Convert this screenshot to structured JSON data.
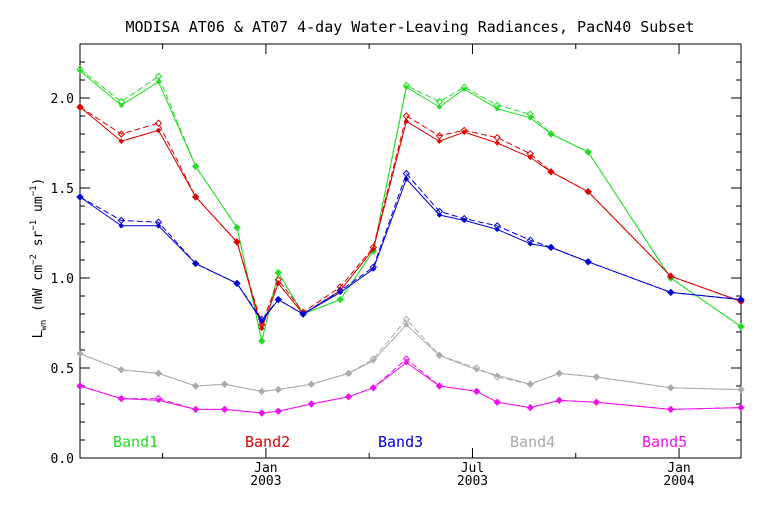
{
  "chart_data": {
    "type": "line",
    "title": "MODISA AT06 & AT07 4-day Water-Leaving Radiances, PacN40 Subset",
    "ylabel": {
      "main": "L",
      "sub": "wn",
      "units_prefix": " (mW cm",
      "exp1": "−2",
      "units_mid": " sr",
      "exp2": "−1",
      "units_mid2": " um",
      "exp3": "−1",
      "units_suffix": ")"
    },
    "ylim": [
      0,
      2.3
    ],
    "xlim": [
      2002.55,
      2004.15
    ],
    "y_ticks": [
      {
        "value": 0.0,
        "label": "0.0"
      },
      {
        "value": 0.5,
        "label": "0.5"
      },
      {
        "value": 1.0,
        "label": "1.0"
      },
      {
        "value": 1.5,
        "label": "1.5"
      },
      {
        "value": 2.0,
        "label": "2.0"
      }
    ],
    "x_ticks": [
      {
        "value": 2003.0,
        "label": "Jan",
        "sublabel": "2003"
      },
      {
        "value": 2003.5,
        "label": "Jul",
        "sublabel": "2003"
      },
      {
        "value": 2004.0,
        "label": "Jan",
        "sublabel": "2004"
      }
    ],
    "series": [
      {
        "name": "Band1",
        "color": "#22dd22",
        "at06": [
          [
            2002.55,
            2.15
          ],
          [
            2002.65,
            1.96
          ],
          [
            2002.74,
            2.09
          ],
          [
            2002.83,
            1.62
          ],
          [
            2002.93,
            1.28
          ],
          [
            2002.99,
            0.65
          ],
          [
            2003.03,
            1.03
          ],
          [
            2003.09,
            0.8
          ],
          [
            2003.18,
            0.88
          ],
          [
            2003.26,
            1.15
          ],
          [
            2003.34,
            2.06
          ],
          [
            2003.42,
            1.95
          ],
          [
            2003.48,
            2.05
          ],
          [
            2003.56,
            1.94
          ],
          [
            2003.64,
            1.89
          ],
          [
            2003.69,
            1.8
          ],
          [
            2003.78,
            1.7
          ],
          [
            2003.98,
            1.0
          ],
          [
            2004.15,
            0.73
          ]
        ],
        "at07": [
          [
            2002.55,
            2.16
          ],
          [
            2002.65,
            1.98
          ],
          [
            2002.74,
            2.12
          ],
          [
            2002.83,
            1.62
          ],
          [
            2002.93,
            1.28
          ],
          [
            2002.99,
            0.65
          ],
          [
            2003.03,
            1.03
          ],
          [
            2003.09,
            0.8
          ],
          [
            2003.18,
            0.88
          ],
          [
            2003.26,
            1.15
          ],
          [
            2003.34,
            2.07
          ],
          [
            2003.42,
            1.98
          ],
          [
            2003.48,
            2.06
          ],
          [
            2003.56,
            1.96
          ],
          [
            2003.64,
            1.91
          ],
          [
            2003.69,
            1.8
          ],
          [
            2003.78,
            1.7
          ],
          [
            2003.98,
            1.0
          ],
          [
            2004.15,
            0.73
          ]
        ]
      },
      {
        "name": "Band2",
        "color": "#dd0000",
        "at06": [
          [
            2002.55,
            1.95
          ],
          [
            2002.65,
            1.76
          ],
          [
            2002.74,
            1.82
          ],
          [
            2002.83,
            1.45
          ],
          [
            2002.93,
            1.2
          ],
          [
            2002.99,
            0.72
          ],
          [
            2003.03,
            0.97
          ],
          [
            2003.09,
            0.8
          ],
          [
            2003.18,
            0.93
          ],
          [
            2003.26,
            1.16
          ],
          [
            2003.34,
            1.87
          ],
          [
            2003.42,
            1.76
          ],
          [
            2003.48,
            1.81
          ],
          [
            2003.56,
            1.75
          ],
          [
            2003.64,
            1.67
          ],
          [
            2003.69,
            1.59
          ],
          [
            2003.78,
            1.48
          ],
          [
            2003.98,
            1.01
          ],
          [
            2004.15,
            0.87
          ]
        ],
        "at07": [
          [
            2002.55,
            1.95
          ],
          [
            2002.65,
            1.8
          ],
          [
            2002.74,
            1.86
          ],
          [
            2002.83,
            1.45
          ],
          [
            2002.93,
            1.2
          ],
          [
            2002.99,
            0.74
          ],
          [
            2003.03,
            0.99
          ],
          [
            2003.09,
            0.81
          ],
          [
            2003.18,
            0.95
          ],
          [
            2003.26,
            1.17
          ],
          [
            2003.34,
            1.9
          ],
          [
            2003.42,
            1.79
          ],
          [
            2003.48,
            1.82
          ],
          [
            2003.56,
            1.78
          ],
          [
            2003.64,
            1.69
          ],
          [
            2003.69,
            1.59
          ],
          [
            2003.78,
            1.48
          ],
          [
            2003.98,
            1.01
          ],
          [
            2004.15,
            0.87
          ]
        ]
      },
      {
        "name": "Band3",
        "color": "#0000dd",
        "at06": [
          [
            2002.55,
            1.45
          ],
          [
            2002.65,
            1.29
          ],
          [
            2002.74,
            1.29
          ],
          [
            2002.83,
            1.08
          ],
          [
            2002.93,
            0.97
          ],
          [
            2002.99,
            0.76
          ],
          [
            2003.03,
            0.88
          ],
          [
            2003.09,
            0.8
          ],
          [
            2003.18,
            0.92
          ],
          [
            2003.26,
            1.05
          ],
          [
            2003.34,
            1.55
          ],
          [
            2003.42,
            1.35
          ],
          [
            2003.48,
            1.32
          ],
          [
            2003.56,
            1.27
          ],
          [
            2003.64,
            1.19
          ],
          [
            2003.69,
            1.17
          ],
          [
            2003.78,
            1.09
          ],
          [
            2003.98,
            0.92
          ],
          [
            2004.15,
            0.88
          ]
        ],
        "at07": [
          [
            2002.55,
            1.45
          ],
          [
            2002.65,
            1.32
          ],
          [
            2002.74,
            1.31
          ],
          [
            2002.83,
            1.08
          ],
          [
            2002.93,
            0.97
          ],
          [
            2002.99,
            0.77
          ],
          [
            2003.03,
            0.88
          ],
          [
            2003.09,
            0.8
          ],
          [
            2003.18,
            0.93
          ],
          [
            2003.26,
            1.06
          ],
          [
            2003.34,
            1.58
          ],
          [
            2003.42,
            1.37
          ],
          [
            2003.48,
            1.33
          ],
          [
            2003.56,
            1.29
          ],
          [
            2003.64,
            1.21
          ],
          [
            2003.69,
            1.17
          ],
          [
            2003.78,
            1.09
          ],
          [
            2003.98,
            0.92
          ],
          [
            2004.15,
            0.88
          ]
        ]
      },
      {
        "name": "Band4",
        "color": "#aaaaaa",
        "at06": [
          [
            2002.55,
            0.58
          ],
          [
            2002.65,
            0.49
          ],
          [
            2002.74,
            0.47
          ],
          [
            2002.83,
            0.4
          ],
          [
            2002.9,
            0.41
          ],
          [
            2002.99,
            0.37
          ],
          [
            2003.03,
            0.38
          ],
          [
            2003.11,
            0.41
          ],
          [
            2003.2,
            0.47
          ],
          [
            2003.26,
            0.54
          ],
          [
            2003.34,
            0.74
          ],
          [
            2003.42,
            0.57
          ],
          [
            2003.51,
            0.49
          ],
          [
            2003.56,
            0.46
          ],
          [
            2003.64,
            0.41
          ],
          [
            2003.71,
            0.47
          ],
          [
            2003.8,
            0.45
          ],
          [
            2003.98,
            0.39
          ],
          [
            2004.15,
            0.38
          ]
        ],
        "at07": [
          [
            2002.55,
            0.58
          ],
          [
            2002.65,
            0.49
          ],
          [
            2002.74,
            0.47
          ],
          [
            2002.83,
            0.4
          ],
          [
            2002.9,
            0.41
          ],
          [
            2002.99,
            0.37
          ],
          [
            2003.03,
            0.38
          ],
          [
            2003.11,
            0.41
          ],
          [
            2003.2,
            0.47
          ],
          [
            2003.26,
            0.55
          ],
          [
            2003.34,
            0.77
          ],
          [
            2003.42,
            0.57
          ],
          [
            2003.51,
            0.5
          ],
          [
            2003.56,
            0.45
          ],
          [
            2003.64,
            0.41
          ],
          [
            2003.71,
            0.47
          ],
          [
            2003.8,
            0.45
          ],
          [
            2003.98,
            0.39
          ],
          [
            2004.15,
            0.38
          ]
        ]
      },
      {
        "name": "Band5",
        "color": "#ee11ee",
        "at06": [
          [
            2002.55,
            0.4
          ],
          [
            2002.65,
            0.33
          ],
          [
            2002.74,
            0.32
          ],
          [
            2002.83,
            0.27
          ],
          [
            2002.9,
            0.27
          ],
          [
            2002.99,
            0.25
          ],
          [
            2003.03,
            0.26
          ],
          [
            2003.11,
            0.3
          ],
          [
            2003.2,
            0.34
          ],
          [
            2003.26,
            0.39
          ],
          [
            2003.34,
            0.53
          ],
          [
            2003.42,
            0.4
          ],
          [
            2003.51,
            0.37
          ],
          [
            2003.56,
            0.31
          ],
          [
            2003.64,
            0.28
          ],
          [
            2003.71,
            0.32
          ],
          [
            2003.8,
            0.31
          ],
          [
            2003.98,
            0.27
          ],
          [
            2004.15,
            0.28
          ]
        ],
        "at07": [
          [
            2002.55,
            0.4
          ],
          [
            2002.65,
            0.33
          ],
          [
            2002.74,
            0.33
          ],
          [
            2002.83,
            0.27
          ],
          [
            2002.9,
            0.27
          ],
          [
            2002.99,
            0.25
          ],
          [
            2003.03,
            0.26
          ],
          [
            2003.11,
            0.3
          ],
          [
            2003.2,
            0.34
          ],
          [
            2003.26,
            0.39
          ],
          [
            2003.34,
            0.55
          ],
          [
            2003.42,
            0.4
          ],
          [
            2003.51,
            0.37
          ],
          [
            2003.56,
            0.31
          ],
          [
            2003.64,
            0.28
          ],
          [
            2003.71,
            0.32
          ],
          [
            2003.8,
            0.31
          ],
          [
            2003.98,
            0.27
          ],
          [
            2004.15,
            0.28
          ]
        ]
      }
    ]
  }
}
